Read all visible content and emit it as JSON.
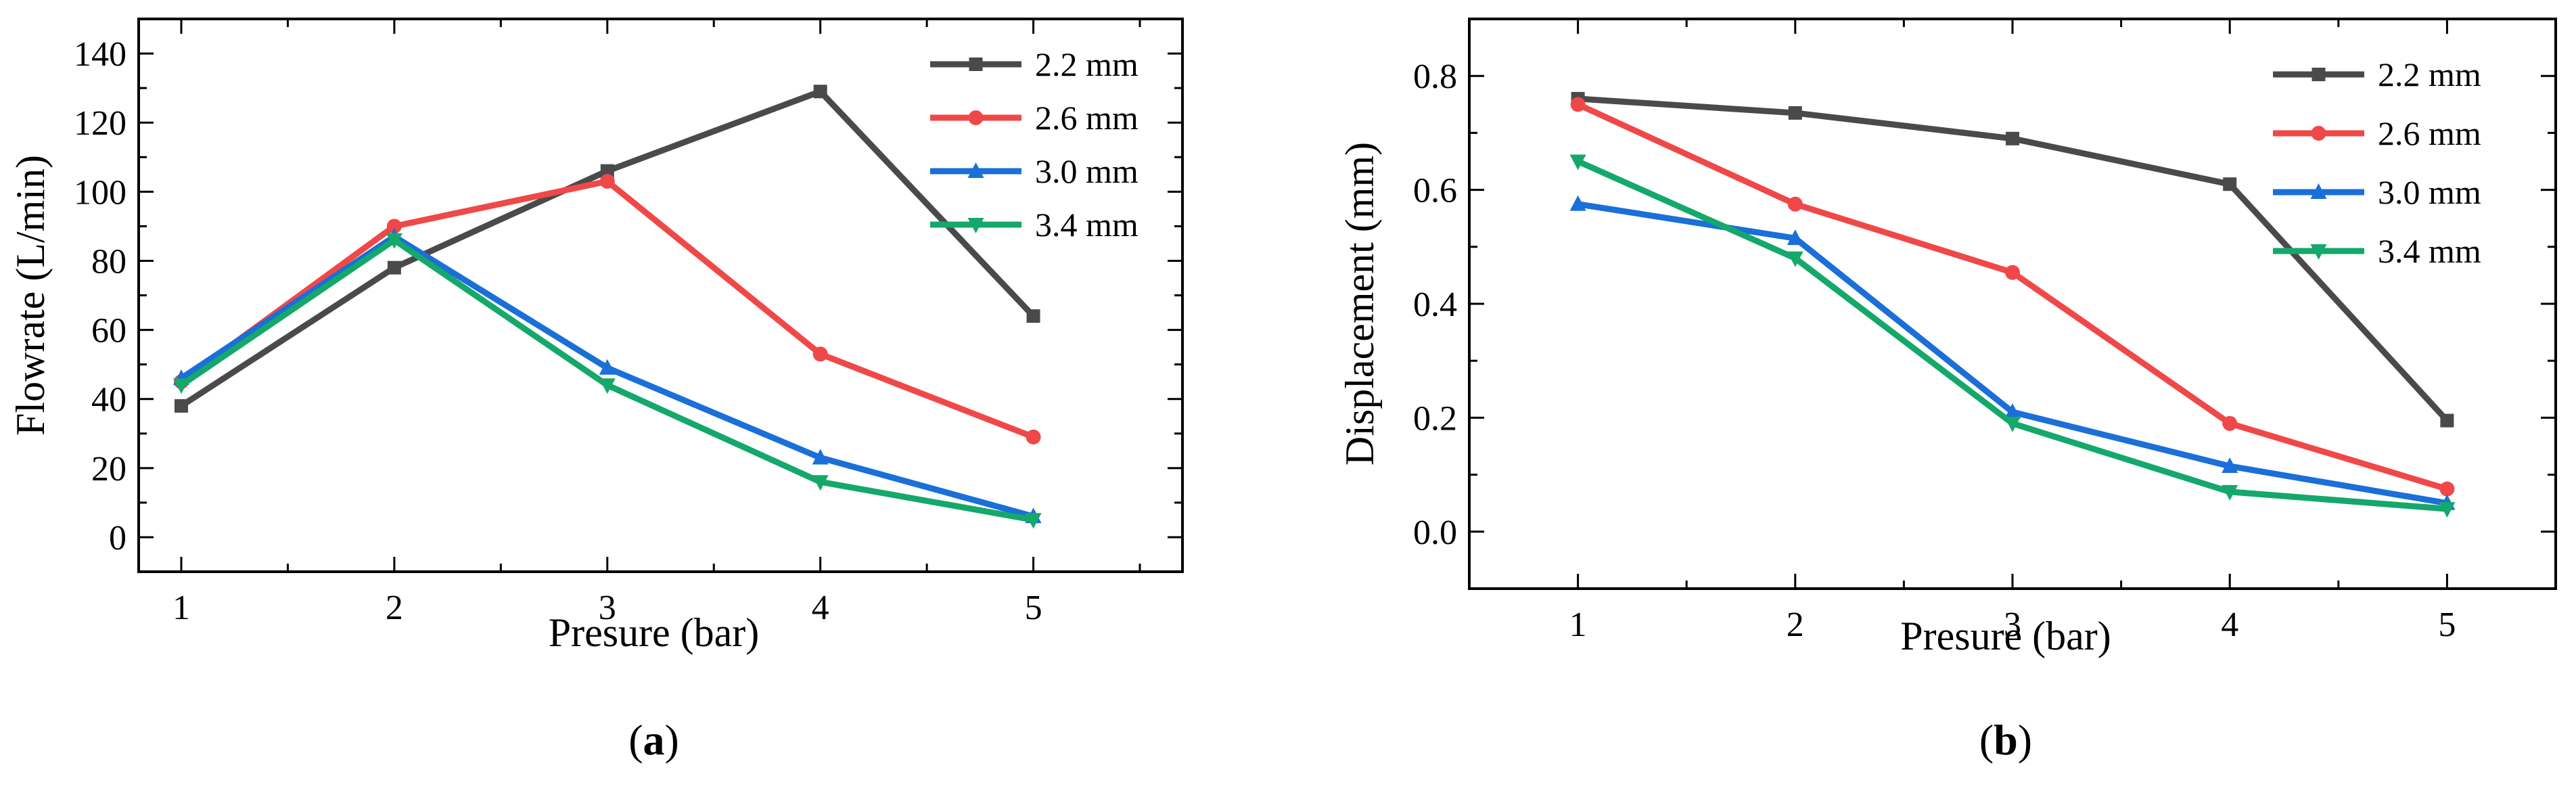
{
  "chart_data": [
    {
      "type": "line",
      "panel_label": "a",
      "title": "",
      "xlabel": "Presure (bar)",
      "ylabel": "Flowrate (L/min)",
      "x": [
        1,
        2,
        3,
        4,
        5
      ],
      "xlim": [
        0.8,
        5.7
      ],
      "ylim": [
        -10,
        150
      ],
      "xticks": [
        1,
        2,
        3,
        4,
        5
      ],
      "yticks": [
        0,
        20,
        40,
        60,
        80,
        100,
        120,
        140
      ],
      "legend_position": "top-right",
      "series": [
        {
          "name": "2.2 mm",
          "color": "#4a4a4a",
          "marker": "square",
          "values": [
            38,
            78,
            106,
            129,
            64
          ]
        },
        {
          "name": "2.6 mm",
          "color": "#f04848",
          "marker": "circle",
          "values": [
            45,
            90,
            103,
            53,
            29
          ]
        },
        {
          "name": "3.0 mm",
          "color": "#1a6fd8",
          "marker": "triangle-up",
          "values": [
            46,
            87,
            49,
            23,
            6
          ]
        },
        {
          "name": "3.4 mm",
          "color": "#14a86b",
          "marker": "triangle-down",
          "values": [
            44,
            86,
            44,
            16,
            5
          ]
        }
      ]
    },
    {
      "type": "line",
      "panel_label": "b",
      "title": "",
      "xlabel": "Presure (bar)",
      "ylabel": "Displacement (mm)",
      "x": [
        1,
        2,
        3,
        4,
        5
      ],
      "xlim": [
        0.5,
        5.5
      ],
      "ylim": [
        -0.1,
        0.9
      ],
      "xticks": [
        1,
        2,
        3,
        4,
        5
      ],
      "yticks": [
        0.0,
        0.2,
        0.4,
        0.6,
        0.8
      ],
      "ytick_labels": [
        "0.0",
        "0.2",
        "0.4",
        "0.6",
        "0.8"
      ],
      "legend_position": "top-right",
      "series": [
        {
          "name": "2.2 mm",
          "color": "#4a4a4a",
          "marker": "square",
          "values": [
            0.76,
            0.735,
            0.69,
            0.61,
            0.195
          ]
        },
        {
          "name": "2.6 mm",
          "color": "#f04848",
          "marker": "circle",
          "values": [
            0.75,
            0.575,
            0.455,
            0.19,
            0.075
          ]
        },
        {
          "name": "3.0 mm",
          "color": "#1a6fd8",
          "marker": "triangle-up",
          "values": [
            0.575,
            0.515,
            0.21,
            0.115,
            0.05
          ]
        },
        {
          "name": "3.4 mm",
          "color": "#14a86b",
          "marker": "triangle-down",
          "values": [
            0.65,
            0.48,
            0.19,
            0.07,
            0.04
          ]
        }
      ]
    }
  ]
}
